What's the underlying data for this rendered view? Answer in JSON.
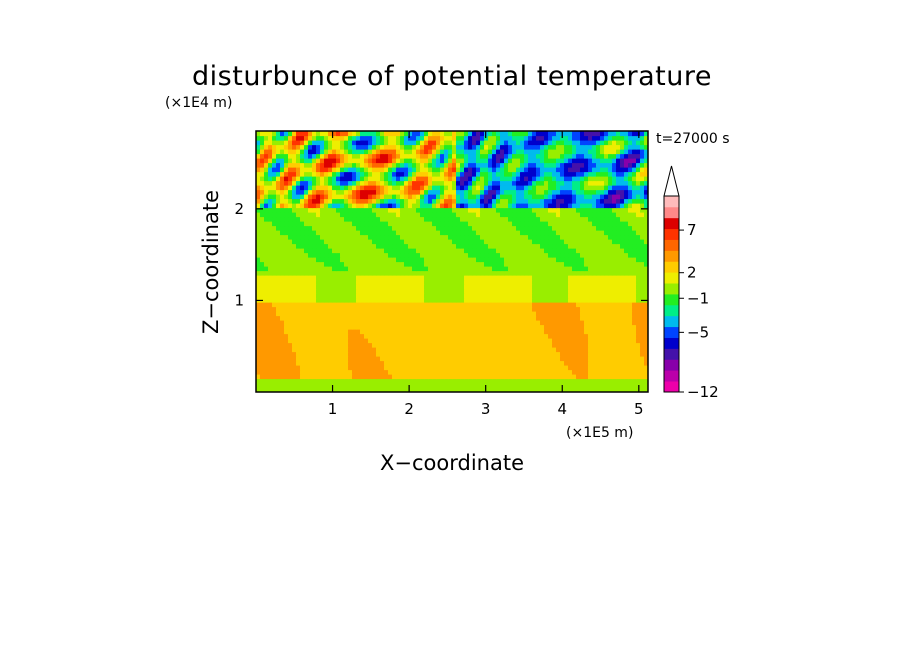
{
  "chart_data": {
    "type": "heatmap",
    "title": "disturbunce of potential temperature",
    "time_label": "t=27000 s",
    "xlabel": "X−coordinate",
    "ylabel": "Z−coordinate",
    "x_unit": "(×1E5 m)",
    "y_unit": "(×1E4 m)",
    "xlim": [
      0,
      5.12
    ],
    "ylim": [
      0,
      2.85
    ],
    "x_ticks": [
      "1",
      "2",
      "3",
      "4",
      "5"
    ],
    "x_tick_values": [
      1,
      2,
      3,
      4,
      5
    ],
    "y_ticks": [
      "1",
      "2"
    ],
    "y_tick_values": [
      1,
      2
    ],
    "colorbar": {
      "tick_labels": [
        "7",
        "2",
        "−1",
        "−5",
        "−12"
      ],
      "tick_values": [
        7,
        2,
        -1,
        -5,
        -12
      ],
      "level_colors": [
        "#ee00aa",
        "#bb00aa",
        "#8800aa",
        "#4411aa",
        "#0000cc",
        "#0044ff",
        "#00bbee",
        "#00ee88",
        "#22ee22",
        "#99ee00",
        "#eeee00",
        "#ffcc00",
        "#ff9900",
        "#ff6600",
        "#ff3300",
        "#dd0000",
        "#ff8888",
        "#ffbbbb"
      ],
      "extend_top": true
    },
    "field_description_rows": [
      {
        "z_range": [
          2.0,
          2.85
        ],
        "pattern": "alternating warm (orange/red) and cold (blue/purple) wave structures"
      },
      {
        "z_range": [
          1.3,
          2.0
        ],
        "pattern": "green/cyan with blue patches"
      },
      {
        "z_range": [
          1.0,
          1.3
        ],
        "pattern": "green/yellow band"
      },
      {
        "z_range": [
          0.1,
          1.0
        ],
        "pattern": "yellow with orange patches"
      }
    ]
  }
}
